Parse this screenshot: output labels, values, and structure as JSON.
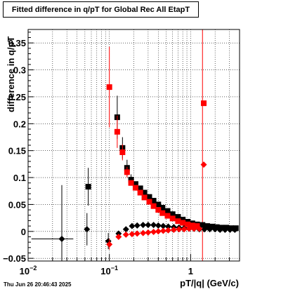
{
  "chart_data": {
    "type": "scatter",
    "title": "Fitted difference in q/pT for Global Rec All EtapT",
    "xlabel": "pT/|q| (GeV/c)",
    "ylabel": "difference in q/pT",
    "x_scale": "log",
    "xlim": [
      0.01,
      4.0
    ],
    "ylim": [
      -0.055,
      0.375
    ],
    "grid": true,
    "x_major_ticks": [
      {
        "value": 0.01,
        "base": "10",
        "exp": "−2"
      },
      {
        "value": 0.1,
        "base": "10",
        "exp": "−1"
      },
      {
        "value": 1,
        "base": "1",
        "exp": ""
      }
    ],
    "y_ticks": [
      {
        "value": -0.05,
        "label": "−0.05"
      },
      {
        "value": 0,
        "label": "0"
      },
      {
        "value": 0.05,
        "label": "0.05"
      },
      {
        "value": 0.1,
        "label": "0.1"
      },
      {
        "value": 0.15,
        "label": "0.15"
      },
      {
        "value": 0.2,
        "label": "0.2"
      },
      {
        "value": 0.25,
        "label": "0.25"
      },
      {
        "value": 0.3,
        "label": "0.3"
      },
      {
        "value": 0.35,
        "label": "0.35"
      }
    ],
    "vline": {
      "x": 1.4,
      "color": "#ff0000"
    },
    "series": [
      {
        "marker": "square",
        "color": "#000000",
        "points": [
          {
            "x": 0.055,
            "y": 0.083,
            "yerr": 0.035
          },
          {
            "x": 0.125,
            "y": 0.212,
            "yerr": 0.04
          },
          {
            "x": 0.145,
            "y": 0.155,
            "yerr": 0.02
          },
          {
            "x": 0.165,
            "y": 0.118,
            "yerr": 0.015
          },
          {
            "x": 0.185,
            "y": 0.096,
            "yerr": 0.01
          },
          {
            "x": 0.21,
            "y": 0.088
          },
          {
            "x": 0.24,
            "y": 0.08
          },
          {
            "x": 0.27,
            "y": 0.072
          },
          {
            "x": 0.31,
            "y": 0.064
          },
          {
            "x": 0.35,
            "y": 0.057
          },
          {
            "x": 0.4,
            "y": 0.05
          },
          {
            "x": 0.45,
            "y": 0.044
          },
          {
            "x": 0.52,
            "y": 0.038
          },
          {
            "x": 0.6,
            "y": 0.032
          },
          {
            "x": 0.7,
            "y": 0.027
          },
          {
            "x": 0.8,
            "y": 0.022
          },
          {
            "x": 0.92,
            "y": 0.018
          },
          {
            "x": 1.05,
            "y": 0.015
          },
          {
            "x": 1.2,
            "y": 0.013
          },
          {
            "x": 1.4,
            "y": 0.012
          },
          {
            "x": 1.6,
            "y": 0.01
          },
          {
            "x": 1.85,
            "y": 0.009
          },
          {
            "x": 2.1,
            "y": 0.008
          },
          {
            "x": 2.4,
            "y": 0.007
          },
          {
            "x": 2.75,
            "y": 0.007
          },
          {
            "x": 3.15,
            "y": 0.006
          },
          {
            "x": 3.6,
            "y": 0.006
          }
        ]
      },
      {
        "marker": "diamond",
        "color": "#000000",
        "points": [
          {
            "x": 0.026,
            "y": -0.014,
            "yerr": 0.1,
            "xerr": [
              0.011,
              0.036
            ]
          },
          {
            "x": 0.053,
            "y": 0.004,
            "yerr": 0.03
          },
          {
            "x": 0.097,
            "y": -0.018,
            "yerr": 0.015
          },
          {
            "x": 0.13,
            "y": -0.004
          },
          {
            "x": 0.16,
            "y": 0.004
          },
          {
            "x": 0.19,
            "y": 0.01
          },
          {
            "x": 0.22,
            "y": 0.011
          },
          {
            "x": 0.26,
            "y": 0.012
          },
          {
            "x": 0.3,
            "y": 0.012
          },
          {
            "x": 0.35,
            "y": 0.012
          },
          {
            "x": 0.4,
            "y": 0.011
          },
          {
            "x": 0.46,
            "y": 0.01
          },
          {
            "x": 0.53,
            "y": 0.009
          },
          {
            "x": 0.62,
            "y": 0.008
          },
          {
            "x": 0.72,
            "y": 0.007
          },
          {
            "x": 0.83,
            "y": 0.006
          },
          {
            "x": 0.96,
            "y": 0.005
          },
          {
            "x": 1.1,
            "y": 0.005
          },
          {
            "x": 1.28,
            "y": 0.004
          },
          {
            "x": 1.48,
            "y": 0.004
          },
          {
            "x": 1.72,
            "y": 0.004
          },
          {
            "x": 2.0,
            "y": 0.004
          },
          {
            "x": 2.3,
            "y": 0.003
          },
          {
            "x": 2.65,
            "y": 0.003
          },
          {
            "x": 3.05,
            "y": 0.003
          },
          {
            "x": 3.5,
            "y": 0.003
          }
        ]
      },
      {
        "marker": "square",
        "color": "#ff0000",
        "points": [
          {
            "x": 0.1,
            "y": 0.268,
            "yerr": 0.075
          },
          {
            "x": 0.125,
            "y": 0.185,
            "yerr": 0.03
          },
          {
            "x": 0.145,
            "y": 0.147,
            "yerr": 0.015
          },
          {
            "x": 0.165,
            "y": 0.11,
            "yerr": 0.01
          },
          {
            "x": 0.185,
            "y": 0.09
          },
          {
            "x": 0.21,
            "y": 0.081
          },
          {
            "x": 0.24,
            "y": 0.072
          },
          {
            "x": 0.27,
            "y": 0.063
          },
          {
            "x": 0.31,
            "y": 0.055
          },
          {
            "x": 0.35,
            "y": 0.047
          },
          {
            "x": 0.4,
            "y": 0.04
          },
          {
            "x": 0.45,
            "y": 0.034
          },
          {
            "x": 0.52,
            "y": 0.029
          },
          {
            "x": 0.6,
            "y": 0.024
          },
          {
            "x": 0.7,
            "y": 0.019
          },
          {
            "x": 0.8,
            "y": 0.016
          },
          {
            "x": 0.92,
            "y": 0.013
          },
          {
            "x": 1.05,
            "y": 0.011
          },
          {
            "x": 1.2,
            "y": 0.01
          },
          {
            "x": 1.45,
            "y": 0.238
          }
        ]
      },
      {
        "marker": "diamond",
        "color": "#ff0000",
        "points": [
          {
            "x": 0.1,
            "y": -0.024,
            "yerr": 0.01
          },
          {
            "x": 0.13,
            "y": -0.01
          },
          {
            "x": 0.16,
            "y": -0.006
          },
          {
            "x": 0.19,
            "y": -0.005
          },
          {
            "x": 0.22,
            "y": -0.004
          },
          {
            "x": 0.26,
            "y": -0.003
          },
          {
            "x": 0.3,
            "y": -0.002
          },
          {
            "x": 0.35,
            "y": -0.001
          },
          {
            "x": 0.4,
            "y": 0.0
          },
          {
            "x": 0.46,
            "y": 0.001
          },
          {
            "x": 0.53,
            "y": 0.002
          },
          {
            "x": 0.62,
            "y": 0.003
          },
          {
            "x": 0.72,
            "y": 0.004
          },
          {
            "x": 0.83,
            "y": 0.004
          },
          {
            "x": 0.96,
            "y": 0.005
          },
          {
            "x": 1.1,
            "y": 0.005
          },
          {
            "x": 1.28,
            "y": 0.005
          },
          {
            "x": 1.45,
            "y": 0.124
          }
        ]
      }
    ]
  },
  "timestamp": "Thu Jun 26 20:46:43 2025"
}
